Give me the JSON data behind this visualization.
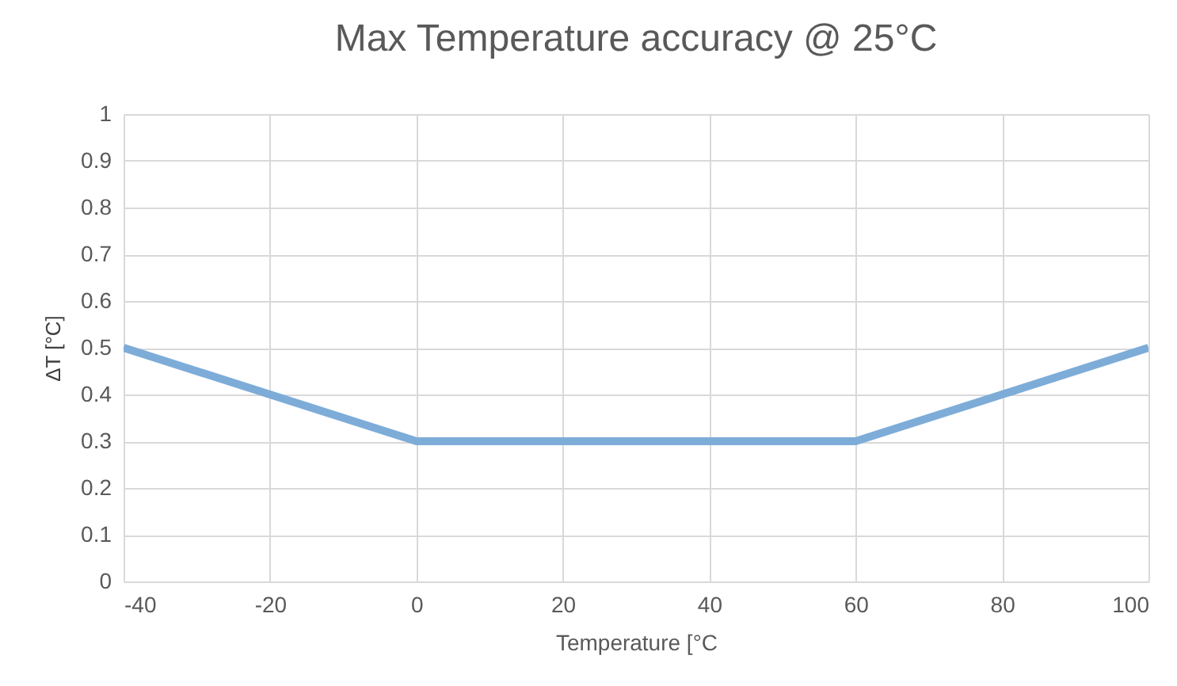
{
  "chart_data": {
    "type": "line",
    "title": "Max Temperature  accuracy  @ 25°C",
    "xlabel": "Temperature [°C",
    "ylabel": "ΔT [°C]",
    "x": [
      -40,
      -20,
      0,
      60,
      80,
      100
    ],
    "series": [
      {
        "color": "#7eacd8",
        "values": [
          0.5,
          0.4,
          0.3,
          0.3,
          0.4,
          0.5
        ]
      }
    ],
    "xlim": [
      -40,
      100
    ],
    "xticks": [
      -40,
      -20,
      0,
      20,
      40,
      60,
      80,
      100
    ],
    "ylim": [
      0,
      1
    ],
    "yticks": [
      0,
      0.1,
      0.2,
      0.3,
      0.4,
      0.5,
      0.6,
      0.7,
      0.8,
      0.9,
      1
    ],
    "grid": true,
    "marker": "none",
    "line_style": "solid"
  }
}
